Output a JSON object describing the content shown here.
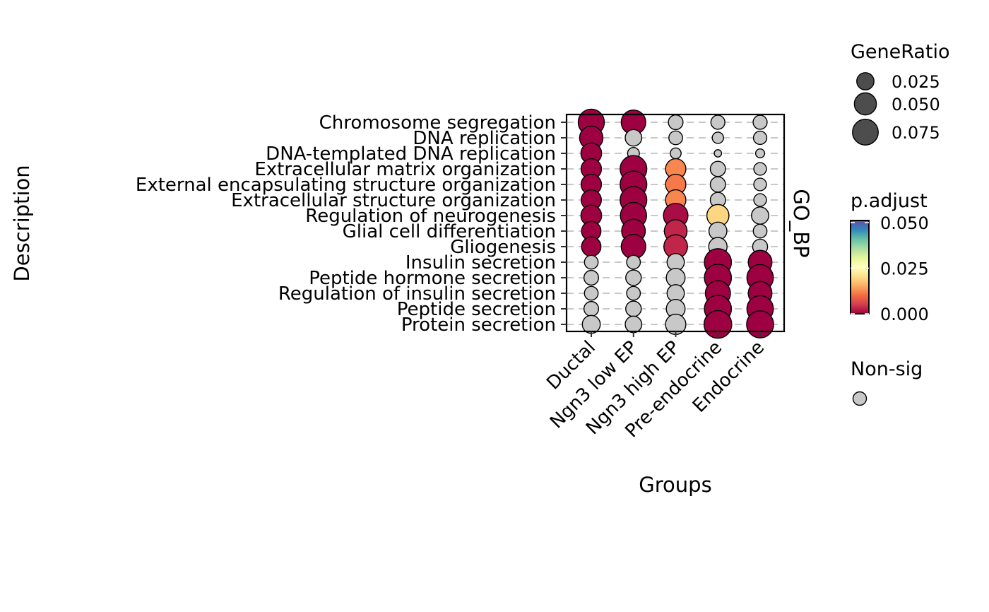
{
  "chart_data": {
    "type": "dotplot",
    "xlabel": "Groups",
    "ylabel": "Description",
    "facet_label": "GO_BP",
    "groups": [
      "Ductal",
      "Ngn3 low EP",
      "Ngn3 high EP",
      "Pre-endocrine",
      "Endocrine"
    ],
    "terms": [
      "Chromosome segregation",
      "DNA replication",
      "DNA-templated DNA replication",
      "Extracellular matrix organization",
      "External encapsulating structure organization",
      "Extracellular structure organization",
      "Regulation of neurogenesis",
      "Glial cell differentiation",
      "Gliogenesis",
      "Insulin secretion",
      "Peptide hormone secretion",
      "Regulation of insulin secretion",
      "Peptide secretion",
      "Protein secretion"
    ],
    "gene_ratio": [
      [
        0.078,
        0.066,
        0.015,
        0.013,
        0.013
      ],
      [
        0.058,
        0.022,
        0.012,
        0.006,
        0.011
      ],
      [
        0.042,
        0.007,
        0.005,
        0.0005,
        0.002
      ],
      [
        0.04,
        0.082,
        0.04,
        0.017,
        0.009
      ],
      [
        0.04,
        0.082,
        0.04,
        0.017,
        0.009
      ],
      [
        0.039,
        0.082,
        0.04,
        0.017,
        0.009
      ],
      [
        0.042,
        0.078,
        0.066,
        0.05,
        0.025
      ],
      [
        0.035,
        0.06,
        0.054,
        0.028,
        0.012
      ],
      [
        0.035,
        0.066,
        0.06,
        0.03,
        0.016
      ],
      [
        0.012,
        0.012,
        0.025,
        0.085,
        0.06
      ],
      [
        0.015,
        0.018,
        0.032,
        0.085,
        0.08
      ],
      [
        0.012,
        0.012,
        0.025,
        0.07,
        0.06
      ],
      [
        0.015,
        0.018,
        0.032,
        0.085,
        0.08
      ],
      [
        0.028,
        0.022,
        0.04,
        0.09,
        0.085
      ]
    ],
    "p_adjust": [
      [
        0.0,
        0.0,
        null,
        null,
        null
      ],
      [
        0.0,
        null,
        null,
        null,
        null
      ],
      [
        0.0,
        null,
        null,
        null,
        null
      ],
      [
        0.0,
        0.0,
        0.012,
        null,
        null
      ],
      [
        0.0,
        0.0,
        0.011,
        null,
        null
      ],
      [
        0.0,
        0.0,
        0.012,
        null,
        null
      ],
      [
        0.0,
        0.0,
        0.001,
        0.019,
        null
      ],
      [
        0.0,
        0.0,
        0.003,
        null,
        null
      ],
      [
        0.0,
        0.0,
        0.003,
        null,
        null
      ],
      [
        null,
        null,
        null,
        0.0,
        0.0
      ],
      [
        null,
        null,
        null,
        0.0,
        0.0
      ],
      [
        null,
        null,
        null,
        0.0,
        0.0
      ],
      [
        null,
        null,
        null,
        0.0,
        0.0
      ],
      [
        null,
        null,
        null,
        0.0,
        0.0
      ]
    ],
    "size_legend": {
      "title": "GeneRatio",
      "breaks": [
        0.025,
        0.05,
        0.075
      ],
      "labels": [
        "0.025",
        "0.050",
        "0.075"
      ]
    },
    "color_legend": {
      "title": "p.adjust",
      "range": [
        0.0,
        0.05
      ],
      "labels": [
        "0.050",
        "0.025",
        "0.000"
      ],
      "palette": [
        "#9e0142",
        "#d53e4f",
        "#f46d43",
        "#fdae61",
        "#fee08b",
        "#ffffbf",
        "#e6f598",
        "#abdda4",
        "#66c2a5",
        "#3288bd",
        "#5e4fa2"
      ]
    },
    "nonsig_legend": {
      "title": "Non-sig",
      "color": "#c8c8c8"
    },
    "grid": "dashed-horizontal"
  }
}
